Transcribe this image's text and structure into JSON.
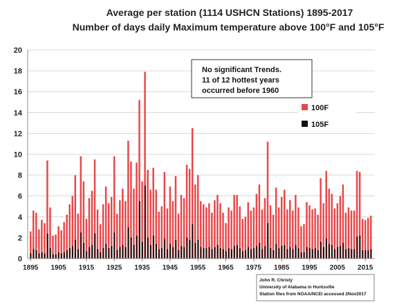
{
  "chart_data": {
    "type": "bar",
    "title": "Average per station (1114 USHCN Stations) 1895-2017",
    "subtitle": "Number of days daily Maximum temperature above 100°F and 105°F",
    "xlabel": "",
    "ylabel": "",
    "ylim": [
      0,
      20
    ],
    "yticks": [
      0,
      2,
      4,
      6,
      8,
      10,
      12,
      14,
      16,
      18,
      20
    ],
    "xticks": [
      "1895",
      "1905",
      "1915",
      "1925",
      "1935",
      "1945",
      "1955",
      "1965",
      "1975",
      "1985",
      "1995",
      "2005",
      "2015"
    ],
    "grid": true,
    "legend_position": "right",
    "x": [
      1895,
      1896,
      1897,
      1898,
      1899,
      1900,
      1901,
      1902,
      1903,
      1904,
      1905,
      1906,
      1907,
      1908,
      1909,
      1910,
      1911,
      1912,
      1913,
      1914,
      1915,
      1916,
      1917,
      1918,
      1919,
      1920,
      1921,
      1922,
      1923,
      1924,
      1925,
      1926,
      1927,
      1928,
      1929,
      1930,
      1931,
      1932,
      1933,
      1934,
      1935,
      1936,
      1937,
      1938,
      1939,
      1940,
      1941,
      1942,
      1943,
      1944,
      1945,
      1946,
      1947,
      1948,
      1949,
      1950,
      1951,
      1952,
      1953,
      1954,
      1955,
      1956,
      1957,
      1958,
      1959,
      1960,
      1961,
      1962,
      1963,
      1964,
      1965,
      1966,
      1967,
      1968,
      1969,
      1970,
      1971,
      1972,
      1973,
      1974,
      1975,
      1976,
      1977,
      1978,
      1979,
      1980,
      1981,
      1982,
      1983,
      1984,
      1985,
      1986,
      1987,
      1988,
      1989,
      1990,
      1991,
      1992,
      1993,
      1994,
      1995,
      1996,
      1997,
      1998,
      1999,
      2000,
      2001,
      2002,
      2003,
      2004,
      2005,
      2006,
      2007,
      2008,
      2009,
      2010,
      2011,
      2012,
      2013,
      2014,
      2015,
      2016,
      2017
    ],
    "series": [
      {
        "name": "100F",
        "color": "#e8474a",
        "values": [
          2.6,
          4.6,
          4.4,
          2.8,
          3.7,
          3.4,
          9.4,
          4.9,
          2.2,
          2.3,
          3.1,
          2.7,
          3.5,
          4.2,
          5.2,
          6.0,
          8.0,
          4.3,
          9.8,
          7.4,
          3.8,
          5.8,
          6.5,
          9.5,
          4.7,
          3.3,
          5.2,
          6.9,
          5.3,
          5.9,
          9.8,
          4.3,
          5.6,
          6.7,
          5.5,
          11.3,
          9.3,
          6.7,
          9.2,
          15.2,
          7.4,
          17.9,
          8.5,
          6.6,
          8.7,
          6.6,
          4.5,
          5.0,
          8.3,
          4.8,
          6.9,
          5.5,
          7.9,
          4.3,
          6.1,
          5.8,
          9.0,
          8.6,
          12.5,
          7.1,
          8.0,
          5.5,
          5.2,
          4.9,
          5.3,
          4.4,
          5.6,
          6.1,
          5.3,
          4.4,
          3.4,
          4.9,
          4.6,
          6.1,
          6.1,
          5.0,
          3.8,
          4.0,
          5.4,
          4.6,
          4.9,
          6.2,
          7.1,
          4.7,
          5.8,
          11.2,
          5.1,
          4.2,
          6.8,
          4.9,
          5.9,
          6.6,
          4.7,
          5.6,
          4.6,
          6.1,
          4.9,
          3.1,
          3.3,
          5.4,
          5.1,
          4.7,
          4.8,
          4.2,
          7.7,
          5.3,
          8.4,
          6.7,
          6.2,
          4.8,
          5.3,
          6.0,
          7.1,
          4.4,
          4.9,
          4.6,
          4.6,
          8.4,
          8.3,
          3.8,
          3.7,
          3.9,
          4.1
        ]
      },
      {
        "name": "105F",
        "color": "#111111",
        "values": [
          0.5,
          0.9,
          0.8,
          0.5,
          0.6,
          0.5,
          2.4,
          1.0,
          0.4,
          0.4,
          0.6,
          0.5,
          0.6,
          0.8,
          1.0,
          1.2,
          1.8,
          0.9,
          2.5,
          1.5,
          0.7,
          1.1,
          1.3,
          2.4,
          0.9,
          0.6,
          1.0,
          1.4,
          1.0,
          1.2,
          2.5,
          0.8,
          1.1,
          1.3,
          1.1,
          3.0,
          2.0,
          1.3,
          2.2,
          5.5,
          1.6,
          7.0,
          2.0,
          1.3,
          2.2,
          1.4,
          0.9,
          1.0,
          1.9,
          0.9,
          1.4,
          1.1,
          1.8,
          0.8,
          1.2,
          1.1,
          2.0,
          1.8,
          3.3,
          1.5,
          1.8,
          1.1,
          1.0,
          1.0,
          1.1,
          0.9,
          1.1,
          1.3,
          1.0,
          0.9,
          0.7,
          1.0,
          0.9,
          1.2,
          1.3,
          1.0,
          0.7,
          0.8,
          1.1,
          0.9,
          1.0,
          1.2,
          1.5,
          0.9,
          1.2,
          3.4,
          1.0,
          0.8,
          1.4,
          1.0,
          1.2,
          1.3,
          0.9,
          1.1,
          0.9,
          1.3,
          1.0,
          0.6,
          0.6,
          1.1,
          1.0,
          0.9,
          1.0,
          0.8,
          1.6,
          1.1,
          1.9,
          1.4,
          1.3,
          0.9,
          1.1,
          1.2,
          1.5,
          0.9,
          1.0,
          0.9,
          0.9,
          2.1,
          2.2,
          0.8,
          0.8,
          0.8,
          0.9
        ]
      }
    ],
    "annotation": [
      "No significant Trends.",
      "11 of 12 hottest years",
      "occurred before 1960"
    ],
    "credit": [
      "John R. Christy",
      "University of Alabama in Huntsville",
      "Station files from NOAA/NCEI accessed 2Nov2017"
    ]
  }
}
